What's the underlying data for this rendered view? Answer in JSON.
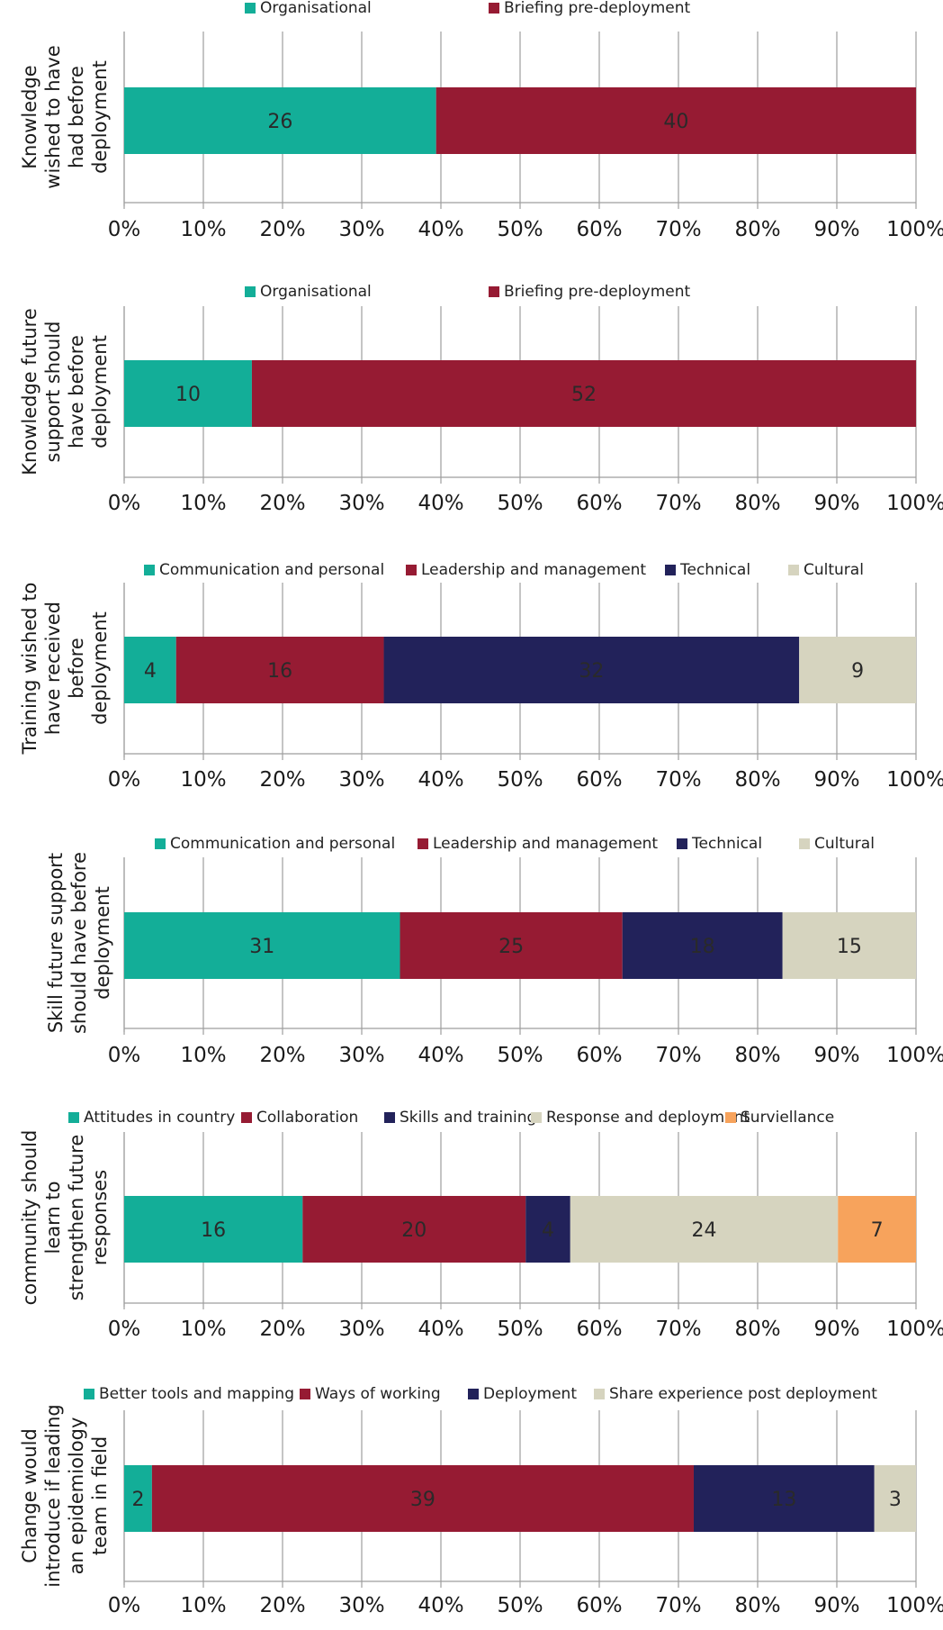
{
  "chart_data": [
    {
      "type": "bar",
      "orientation": "horizontal-stacked-100",
      "ylabel_lines": [
        "Knowledge",
        "wished to have",
        "had before",
        "deployment"
      ],
      "xticks": [
        "0%",
        "10%",
        "20%",
        "30%",
        "40%",
        "50%",
        "60%",
        "70%",
        "80%",
        "90%",
        "100%"
      ],
      "xlim": [
        0,
        100
      ],
      "grid": true,
      "legend_position": "top",
      "series": [
        {
          "name": "Organisational",
          "value": 26,
          "color": "#13ae98"
        },
        {
          "name": "Briefing pre-deployment",
          "value": 40,
          "color": "#961b33"
        }
      ]
    },
    {
      "type": "bar",
      "orientation": "horizontal-stacked-100",
      "ylabel_lines": [
        "Knowledge future",
        "support should",
        "have before",
        "deployment"
      ],
      "xticks": [
        "0%",
        "10%",
        "20%",
        "30%",
        "40%",
        "50%",
        "60%",
        "70%",
        "80%",
        "90%",
        "100%"
      ],
      "xlim": [
        0,
        100
      ],
      "grid": true,
      "legend_position": "top",
      "series": [
        {
          "name": "Organisational",
          "value": 10,
          "color": "#13ae98"
        },
        {
          "name": "Briefing pre-deployment",
          "value": 52,
          "color": "#961b33"
        }
      ]
    },
    {
      "type": "bar",
      "orientation": "horizontal-stacked-100",
      "ylabel_lines": [
        "Training wished to",
        "have received",
        "before",
        "deployment"
      ],
      "xticks": [
        "0%",
        "10%",
        "20%",
        "30%",
        "40%",
        "50%",
        "60%",
        "70%",
        "80%",
        "90%",
        "100%"
      ],
      "xlim": [
        0,
        100
      ],
      "grid": true,
      "legend_position": "top",
      "series": [
        {
          "name": "Communication and personal",
          "value": 4,
          "color": "#13ae98"
        },
        {
          "name": "Leadership and management",
          "value": 16,
          "color": "#961b33"
        },
        {
          "name": "Technical",
          "value": 32,
          "color": "#22225a"
        },
        {
          "name": "Cultural",
          "value": 9,
          "color": "#d6d4bf"
        }
      ]
    },
    {
      "type": "bar",
      "orientation": "horizontal-stacked-100",
      "ylabel_lines": [
        "Skill future support",
        "should have before",
        "deployment"
      ],
      "xticks": [
        "0%",
        "10%",
        "20%",
        "30%",
        "40%",
        "50%",
        "60%",
        "70%",
        "80%",
        "90%",
        "100%"
      ],
      "xlim": [
        0,
        100
      ],
      "grid": true,
      "legend_position": "top",
      "series": [
        {
          "name": "Communication and personal",
          "value": 31,
          "color": "#13ae98"
        },
        {
          "name": "Leadership and management",
          "value": 25,
          "color": "#961b33"
        },
        {
          "name": "Technical",
          "value": 18,
          "color": "#22225a"
        },
        {
          "name": "Cultural",
          "value": 15,
          "color": "#d6d4bf"
        }
      ]
    },
    {
      "type": "bar",
      "orientation": "horizontal-stacked-100",
      "ylabel_lines": [
        "community should",
        "learn to",
        "strengthen future",
        "responses"
      ],
      "xticks": [
        "0%",
        "10%",
        "20%",
        "30%",
        "40%",
        "50%",
        "60%",
        "70%",
        "80%",
        "90%",
        "100%"
      ],
      "xlim": [
        0,
        100
      ],
      "grid": true,
      "legend_position": "top",
      "series": [
        {
          "name": "Attitudes in country",
          "value": 16,
          "color": "#13ae98"
        },
        {
          "name": "Collaboration",
          "value": 20,
          "color": "#961b33"
        },
        {
          "name": "Skills and training",
          "value": 4,
          "color": "#22225a"
        },
        {
          "name": "Response and deployment",
          "value": 24,
          "color": "#d6d4bf"
        },
        {
          "name": "Surviellance",
          "value": 7,
          "color": "#f7a35c"
        }
      ]
    },
    {
      "type": "bar",
      "orientation": "horizontal-stacked-100",
      "ylabel_lines": [
        "Change would",
        "introduce if leading",
        "an epidemiology",
        "team in field"
      ],
      "xticks": [
        "0%",
        "10%",
        "20%",
        "30%",
        "40%",
        "50%",
        "60%",
        "70%",
        "80%",
        "90%",
        "100%"
      ],
      "xlim": [
        0,
        100
      ],
      "grid": true,
      "legend_position": "top",
      "series": [
        {
          "name": "Better tools and mapping",
          "value": 2,
          "color": "#13ae98"
        },
        {
          "name": "Ways of working",
          "value": 39,
          "color": "#961b33"
        },
        {
          "name": "Deployment",
          "value": 13,
          "color": "#22225a"
        },
        {
          "name": "Share experience post deployment",
          "value": 3,
          "color": "#d6d4bf"
        }
      ]
    }
  ]
}
